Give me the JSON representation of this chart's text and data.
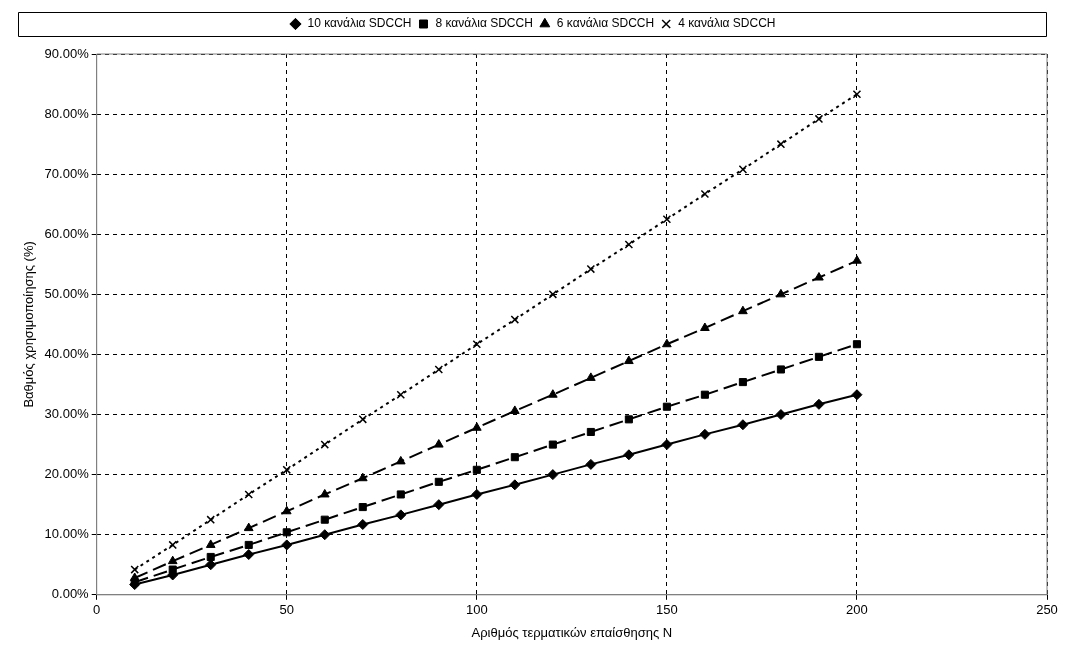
{
  "chart_data": {
    "type": "line",
    "xlabel": "Αριθμός τερματικών επαίσθησης N",
    "ylabel": "Βαθμός χρησιμοποίησης (%)",
    "x": [
      10,
      20,
      30,
      40,
      50,
      60,
      70,
      80,
      90,
      100,
      110,
      120,
      130,
      140,
      150,
      160,
      170,
      180,
      190,
      200
    ],
    "series": [
      {
        "name": "10 κανάλια SDCCH",
        "color": "#000000",
        "marker": "diamond",
        "line_style": "solid",
        "values": [
          1.7,
          3.3,
          5.0,
          6.7,
          8.3,
          10.0,
          11.7,
          13.3,
          15.0,
          16.7,
          18.3,
          20.0,
          21.7,
          23.3,
          25.0,
          26.7,
          28.3,
          30.0,
          31.7,
          33.3
        ]
      },
      {
        "name": "8 κανάλια SDCCH",
        "color": "#000000",
        "marker": "square",
        "line_style": "dashed",
        "values": [
          2.1,
          4.2,
          6.3,
          8.3,
          10.4,
          12.5,
          14.6,
          16.7,
          18.8,
          20.8,
          22.9,
          25.0,
          27.1,
          29.2,
          31.3,
          33.3,
          35.4,
          37.5,
          39.6,
          41.7
        ]
      },
      {
        "name": "6 κανάλια SDCCH",
        "color": "#000000",
        "marker": "triangle",
        "line_style": "dashed",
        "values": [
          2.8,
          5.6,
          8.3,
          11.1,
          13.9,
          16.7,
          19.4,
          22.2,
          25.0,
          27.8,
          30.6,
          33.3,
          36.1,
          38.9,
          41.7,
          44.4,
          47.2,
          50.0,
          52.8,
          55.6
        ]
      },
      {
        "name": "4 κανάλια SDCCH",
        "color": "#000000",
        "marker": "cross",
        "line_style": "dotted",
        "values": [
          4.2,
          8.3,
          12.5,
          16.7,
          20.8,
          25.0,
          29.2,
          33.3,
          37.5,
          41.7,
          45.8,
          50.0,
          54.2,
          58.3,
          62.5,
          66.7,
          70.8,
          75.0,
          79.2,
          83.3
        ]
      }
    ],
    "xlim": [
      0,
      250
    ],
    "xticks": [
      0,
      50,
      100,
      150,
      200,
      250
    ],
    "ylim": [
      0,
      90
    ],
    "yticks": [
      {
        "value": 0,
        "label": "0.00%"
      },
      {
        "value": 10,
        "label": "10.00%"
      },
      {
        "value": 20,
        "label": "20.00%"
      },
      {
        "value": 30,
        "label": "30.00%"
      },
      {
        "value": 40,
        "label": "40.00%"
      },
      {
        "value": 50,
        "label": "50.00%"
      },
      {
        "value": 60,
        "label": "60.00%"
      },
      {
        "value": 70,
        "label": "70.00%"
      },
      {
        "value": 80,
        "label": "80.00%"
      },
      {
        "value": 90,
        "label": "90.00%"
      }
    ],
    "grid": true,
    "legend": "top"
  }
}
